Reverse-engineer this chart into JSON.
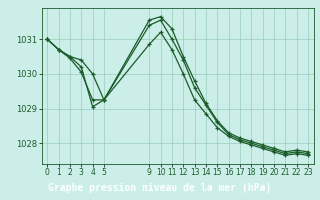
{
  "background_color": "#cceee8",
  "grid_color": "#99ccbb",
  "line_color": "#1a5c2a",
  "marker_color": "#1a5c2a",
  "title": "Graphe pression niveau de la mer (hPa)",
  "ylim": [
    1027.4,
    1031.9
  ],
  "yticks": [
    1028,
    1029,
    1030,
    1031
  ],
  "xtick_positions": [
    0,
    1,
    2,
    3,
    4,
    5,
    9,
    10,
    11,
    12,
    13,
    14,
    15,
    16,
    17,
    18,
    19,
    20,
    21,
    22,
    23
  ],
  "xtick_labels": [
    "0",
    "1",
    "2",
    "3",
    "4",
    "5",
    "9",
    "10",
    "11",
    "12",
    "13",
    "14",
    "15",
    "16",
    "17",
    "18",
    "19",
    "20",
    "21",
    "22",
    "23"
  ],
  "series": [
    {
      "x": [
        0,
        1,
        2,
        3,
        4,
        5,
        9,
        10,
        11,
        12,
        13,
        14,
        15,
        16,
        17,
        18,
        19,
        20,
        21,
        22,
        23
      ],
      "y": [
        1031.0,
        1030.7,
        1030.5,
        1030.4,
        1030.0,
        1029.25,
        1031.55,
        1031.65,
        1031.3,
        1030.5,
        1029.8,
        1029.15,
        1028.65,
        1028.3,
        1028.15,
        1028.05,
        1027.95,
        1027.85,
        1027.75,
        1027.8,
        1027.75
      ]
    },
    {
      "x": [
        0,
        1,
        2,
        3,
        4,
        5,
        9,
        10,
        11,
        12,
        13,
        14,
        15,
        16,
        17,
        18,
        19,
        20,
        21,
        22,
        23
      ],
      "y": [
        1031.0,
        1030.7,
        1030.5,
        1030.2,
        1029.05,
        1029.25,
        1031.4,
        1031.55,
        1031.0,
        1030.4,
        1029.6,
        1029.1,
        1028.6,
        1028.25,
        1028.1,
        1028.0,
        1027.9,
        1027.8,
        1027.7,
        1027.75,
        1027.7
      ]
    },
    {
      "x": [
        0,
        1,
        2,
        3,
        4,
        5,
        9,
        10,
        11,
        12,
        13,
        14,
        15,
        16,
        17,
        18,
        19,
        20,
        21,
        22,
        23
      ],
      "y": [
        1031.0,
        1030.7,
        1030.45,
        1030.05,
        1029.25,
        1029.25,
        1030.85,
        1031.2,
        1030.7,
        1030.0,
        1029.25,
        1028.85,
        1028.45,
        1028.2,
        1028.05,
        1027.95,
        1027.85,
        1027.75,
        1027.65,
        1027.7,
        1027.65
      ]
    }
  ],
  "title_bar_color": "#2d7a4a",
  "title_text_color": "#ffffff",
  "title_fontsize": 7.0,
  "tick_fontsize": 5.5,
  "ytick_fontsize": 6.0,
  "linewidth": 0.9,
  "markersize": 3.5,
  "xlim": [
    -0.5,
    23.5
  ]
}
